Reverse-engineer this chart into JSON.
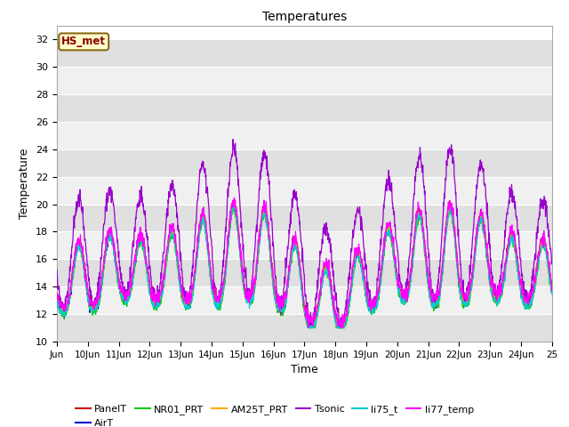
{
  "title": "Temperatures",
  "xlabel": "Time",
  "ylabel": "Temperature",
  "ylim": [
    10,
    33
  ],
  "xlim_days": [
    9,
    25
  ],
  "series_colors": {
    "PanelT": "#cc0000",
    "AirT": "#0000cc",
    "NR01_PRT": "#00cc00",
    "AM25T_PRT": "#ffaa00",
    "Tsonic": "#9900cc",
    "li75_t": "#00cccc",
    "li77_temp": "#ff00ff"
  },
  "series_order": [
    "PanelT",
    "AirT",
    "NR01_PRT",
    "AM25T_PRT",
    "Tsonic",
    "li75_t",
    "li77_temp"
  ],
  "yticks": [
    10,
    12,
    14,
    16,
    18,
    20,
    22,
    24,
    26,
    28,
    30,
    32
  ],
  "xtick_labels": [
    "Jun",
    "10Jun",
    "11Jun",
    "12Jun",
    "13Jun",
    "14Jun",
    "15Jun",
    "16Jun",
    "17Jun",
    "18Jun",
    "19Jun",
    "20Jun",
    "21Jun",
    "22Jun",
    "23Jun",
    "24Jun",
    "25"
  ],
  "xtick_positions": [
    9,
    10,
    11,
    12,
    13,
    14,
    15,
    16,
    17,
    18,
    19,
    20,
    21,
    22,
    23,
    24,
    25
  ],
  "annotation_text": "HS_met",
  "annotation_color": "#8b0000",
  "annotation_bg": "#ffffcc",
  "annotation_border": "#8b6914",
  "bg_gray": "#e0e0e0",
  "bg_white": "#f0f0f0",
  "legend_ncol_row1": 6,
  "figsize": [
    6.4,
    4.8
  ],
  "dpi": 100
}
